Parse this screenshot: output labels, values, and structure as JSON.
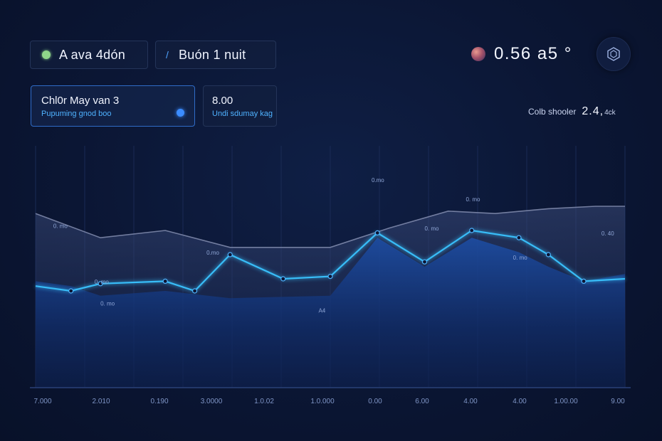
{
  "filters": {
    "pill_a": "A ava 4dón",
    "pill_b": "Buón 1 nuit"
  },
  "cards": {
    "main": {
      "title": "Chl0r May van 3",
      "subtitle": "Pupuming gnod boo"
    },
    "side": {
      "title": "8.00",
      "subtitle": "Undi sdumay kag"
    }
  },
  "header": {
    "value": "0.56 a5 °",
    "icon": "settings-hex-icon"
  },
  "stat": {
    "label": "Colb shooler",
    "value": "2.4,",
    "unit": "4ck"
  },
  "colors": {
    "accent": "#38bdf8",
    "series_band": "#1e4fa5",
    "series_gray": "#8a93b5",
    "background": "#0b1634"
  },
  "chart_data": {
    "type": "area",
    "x_tick_labels": [
      "7.000",
      "2.010",
      "0.190",
      "3.0000",
      "1.0.02",
      "1.0.000",
      "0.00",
      "6.00",
      "4.00",
      "4.00",
      "1.00.00",
      "9.00"
    ],
    "grid": true,
    "series": [
      {
        "role": "upper gray line",
        "x": [
          0,
          0.11,
          0.22,
          0.33,
          0.5,
          0.6,
          0.7,
          0.78,
          0.87,
          0.95,
          1
        ],
        "y": [
          0.72,
          0.62,
          0.65,
          0.58,
          0.58,
          0.66,
          0.73,
          0.72,
          0.74,
          0.75,
          0.75
        ]
      },
      {
        "role": "bright accent line",
        "x": [
          0,
          0.06,
          0.11,
          0.22,
          0.27,
          0.33,
          0.42,
          0.5,
          0.58,
          0.66,
          0.74,
          0.82,
          0.87,
          0.93,
          1
        ],
        "y": [
          0.42,
          0.4,
          0.43,
          0.44,
          0.4,
          0.55,
          0.45,
          0.46,
          0.64,
          0.52,
          0.65,
          0.62,
          0.55,
          0.44,
          0.45
        ]
      },
      {
        "role": "dark band",
        "x": [
          0,
          0.06,
          0.11,
          0.22,
          0.33,
          0.5,
          0.58,
          0.66,
          0.74,
          0.82,
          0.87,
          0.93,
          1
        ],
        "y": [
          0.44,
          0.42,
          0.38,
          0.4,
          0.37,
          0.38,
          0.62,
          0.5,
          0.62,
          0.56,
          0.5,
          0.44,
          0.47
        ]
      }
    ],
    "point_labels": [
      "0. mo",
      "0. mo",
      "0.mo",
      "0.mo",
      "0. mo",
      "0. mo",
      "0. 40",
      "A4",
      "0. mo",
      "0. mo"
    ]
  }
}
